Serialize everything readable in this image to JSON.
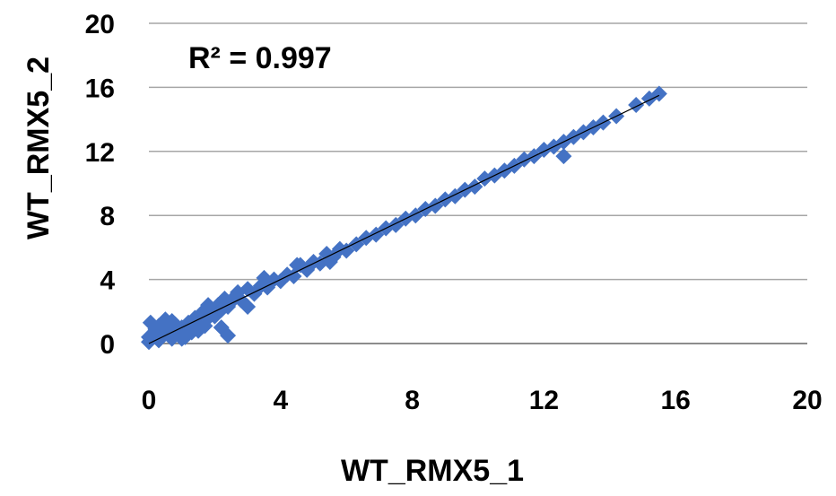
{
  "chart_data": {
    "type": "scatter",
    "title": "",
    "xlabel": "WT_RMX5_1",
    "ylabel": "WT_RMX5_2",
    "xlim": [
      0,
      20
    ],
    "ylim": [
      0,
      20
    ],
    "xticks": [
      "0",
      "4",
      "8",
      "12",
      "16",
      "20"
    ],
    "yticks": [
      "0",
      "4",
      "8",
      "12",
      "16",
      "20"
    ],
    "grid": "horizontal",
    "legend": "none",
    "annotation": "R² = 0.997",
    "marker": "diamond",
    "series": [
      {
        "color": "#4472C4",
        "x": [
          0,
          0.05,
          0.1,
          0.2,
          0.3,
          0.4,
          0.5,
          0.6,
          0.7,
          0.8,
          0.9,
          1.0,
          1.1,
          1.2,
          1.3,
          1.4,
          1.5,
          1.6,
          1.7,
          1.8,
          1.9,
          2.0,
          2.1,
          2.2,
          2.3,
          2.4,
          2.5,
          2.6,
          2.8,
          3.0,
          3.2,
          3.4,
          3.6,
          3.8,
          4.0,
          4.2,
          4.4,
          4.6,
          4.8,
          5.0,
          5.2,
          5.4,
          5.6,
          5.8,
          6.0,
          6.3,
          6.6,
          6.9,
          7.2,
          7.5,
          7.8,
          8.1,
          8.4,
          8.7,
          9.0,
          9.3,
          9.6,
          9.9,
          10.2,
          10.5,
          10.8,
          11.1,
          11.4,
          11.7,
          12.0,
          12.3,
          12.6,
          12.9,
          13.2,
          13.5,
          13.8,
          14.2,
          14.8,
          15.2,
          15.5,
          0.5,
          1.0,
          2.2,
          2.4,
          3.0,
          4.5,
          12.6,
          1.5,
          0.3,
          0.0,
          0.7,
          1.8,
          2.7,
          3.5,
          5.5
        ],
        "y": [
          0.1,
          1.3,
          0.4,
          0.9,
          0.2,
          0.5,
          1.5,
          0.6,
          0.3,
          1.2,
          0.8,
          1.0,
          0.4,
          1.3,
          0.7,
          1.6,
          1.2,
          1.9,
          1.1,
          1.6,
          2.0,
          1.7,
          2.4,
          2.1,
          2.8,
          2.3,
          2.6,
          2.9,
          2.7,
          3.4,
          3.1,
          3.6,
          3.5,
          4.0,
          3.9,
          4.3,
          4.2,
          4.9,
          4.6,
          5.1,
          5.0,
          5.6,
          5.4,
          5.9,
          5.8,
          6.2,
          6.6,
          6.8,
          7.2,
          7.4,
          7.8,
          8.0,
          8.4,
          8.6,
          9.0,
          9.2,
          9.6,
          9.8,
          10.3,
          10.5,
          10.8,
          11.1,
          11.5,
          11.7,
          12.1,
          12.3,
          12.6,
          12.9,
          13.2,
          13.5,
          13.8,
          14.2,
          14.9,
          15.3,
          15.6,
          0.9,
          0.3,
          1.0,
          0.5,
          2.3,
          4.9,
          11.7,
          0.8,
          1.1,
          0.4,
          1.4,
          2.4,
          3.2,
          4.1,
          5.1
        ]
      }
    ],
    "trendline": {
      "x": [
        0,
        15.5
      ],
      "y": [
        0,
        15.5
      ],
      "color": "#000000"
    }
  }
}
